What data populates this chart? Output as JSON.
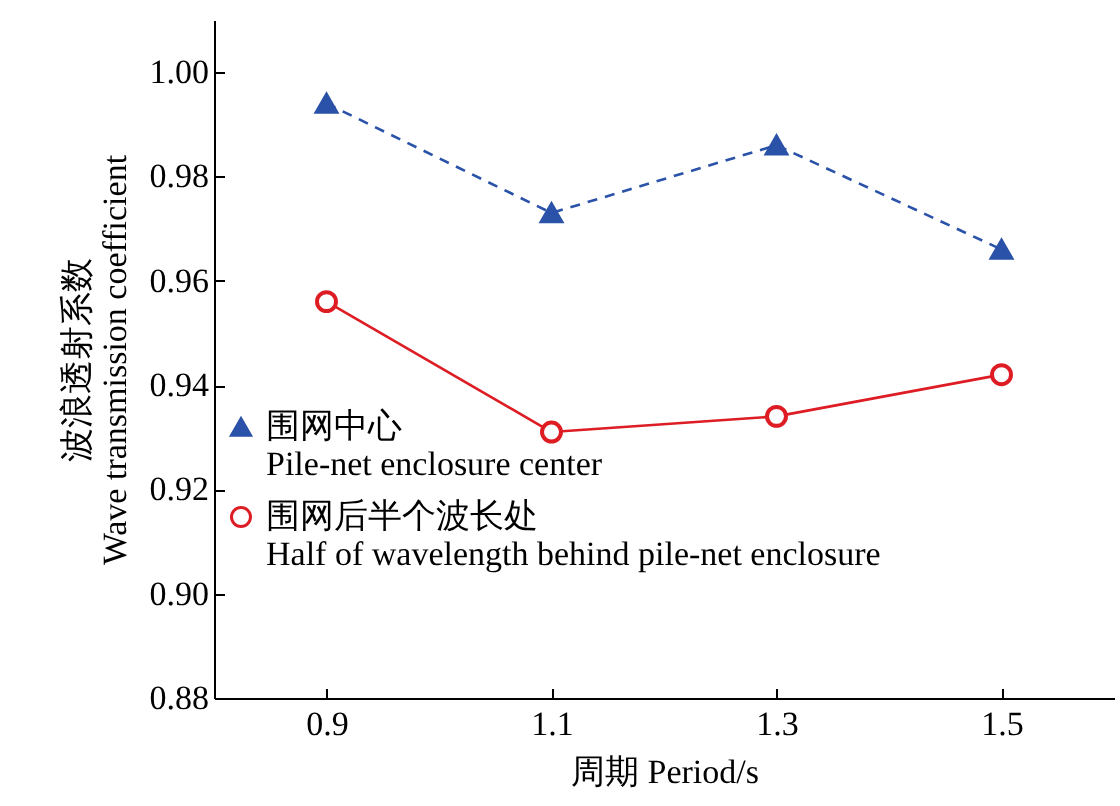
{
  "chart_data": {
    "type": "line",
    "xlabel": "周期 Period/s",
    "ylabel": "波浪透射系数\nWave transmission coefficient",
    "x": [
      0.9,
      1.1,
      1.3,
      1.5
    ],
    "xlim": [
      0.8,
      1.6
    ],
    "xticks": [
      0.9,
      1.1,
      1.3,
      1.5
    ],
    "ylim": [
      0.88,
      1.01
    ],
    "yticks": [
      {
        "value": 0.88,
        "label": "0.88"
      },
      {
        "value": 0.9,
        "label": "0.90"
      },
      {
        "value": 0.92,
        "label": "0.92"
      },
      {
        "value": 0.94,
        "label": "0.94"
      },
      {
        "value": 0.96,
        "label": "0.96"
      },
      {
        "value": 0.98,
        "label": "0.98"
      },
      {
        "value": 1.0,
        "label": "1.00"
      }
    ],
    "series": [
      {
        "name": "围网中心\nPile-net enclosure center",
        "color": "#2a52a8",
        "marker": "triangle",
        "line_style": "dashed",
        "values": [
          0.994,
          0.973,
          0.986,
          0.966
        ]
      },
      {
        "name": "围网后半个波长处\nHalf of wavelength behind pile-net enclosure",
        "color": "#dd1c24",
        "marker": "circle",
        "line_style": "solid",
        "values": [
          0.956,
          0.931,
          0.934,
          0.942
        ]
      }
    ],
    "grid": false,
    "legend": "bottom left"
  }
}
